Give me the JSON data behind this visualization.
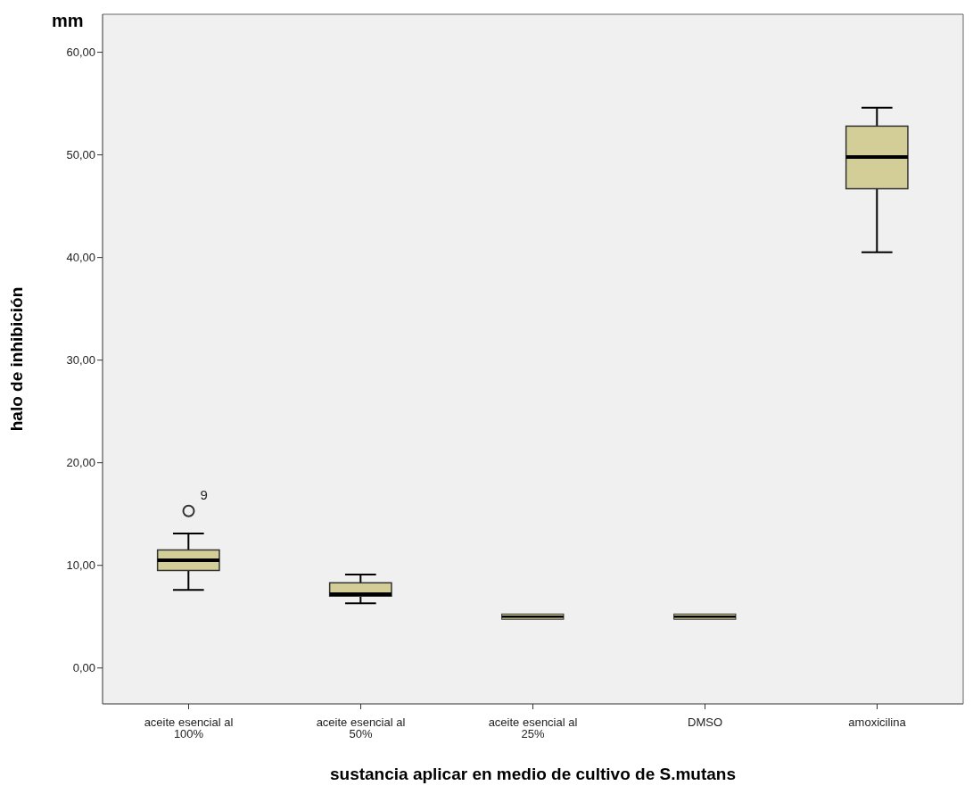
{
  "chart_data": {
    "type": "box",
    "xlabel": "sustancia aplicar en medio de cultivo de S.mutans",
    "ylabel": "halo de inhibición",
    "categories": [
      "aceite esencial al 100%",
      "aceite esencial al 50%",
      "aceite esencial al 25%",
      "DMSO",
      "amoxicilina"
    ],
    "color": "#d3ce97",
    "boxes": [
      {
        "low": 7.6,
        "q1": 9.5,
        "median": 10.5,
        "q3": 11.5,
        "high": 13.1,
        "outliers": [
          15.3
        ]
      },
      {
        "low": 6.3,
        "q1": 7.0,
        "median": 7.2,
        "q3": 8.3,
        "high": 9.1
      },
      {
        "low": 5,
        "q1": 5,
        "median": 5,
        "q3": 5,
        "high": 5
      },
      {
        "low": 5,
        "q1": 5,
        "median": 5,
        "q3": 5,
        "high": 5
      },
      {
        "low": 40.5,
        "q1": 46.7,
        "median": 49.8,
        "q3": 52.8,
        "high": 54.6
      }
    ],
    "ylim": [
      -3.5,
      63.7
    ],
    "yticks": [
      {
        "value": 0,
        "label": "0,00"
      },
      {
        "value": 10,
        "label": "10,00"
      },
      {
        "value": 20,
        "label": "20,00"
      },
      {
        "value": 30,
        "label": "30,00"
      },
      {
        "value": 40,
        "label": "40,00"
      },
      {
        "value": 50,
        "label": "50,00"
      },
      {
        "value": 60,
        "label": "60,00"
      }
    ],
    "annotations": [
      "mm",
      "9"
    ],
    "grid": false
  }
}
